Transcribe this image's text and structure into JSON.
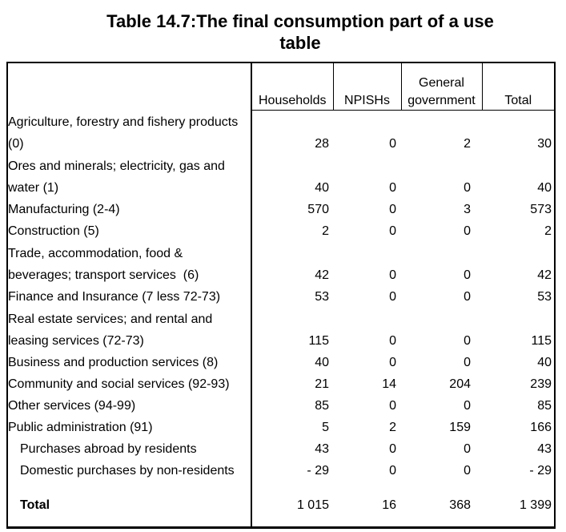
{
  "title": {
    "lines": [
      "Table 14.7:The final consumption part of a use",
      "table"
    ],
    "full_text": "Table 14.7:The final consumption part of a use table"
  },
  "colors": {
    "background": "#ffffff",
    "text": "#000000",
    "border": "#000000"
  },
  "table": {
    "columns": [
      {
        "label_lines": []
      },
      {
        "label_lines": [
          "Households"
        ]
      },
      {
        "label_lines": [
          "NPISHs"
        ]
      },
      {
        "label_lines": [
          "General",
          "government"
        ]
      },
      {
        "label_lines": [
          "Total"
        ]
      }
    ],
    "rows": [
      {
        "label_lines": [
          "Agriculture, forestry and fishery products",
          "(0)"
        ],
        "values": [
          "28",
          "0",
          "2",
          "30"
        ],
        "indent": false,
        "bold": false
      },
      {
        "label_lines": [
          "Ores and minerals; electricity, gas and",
          "water (1)"
        ],
        "values": [
          "40",
          "0",
          "0",
          "40"
        ],
        "indent": false,
        "bold": false
      },
      {
        "label_lines": [
          "Manufacturing (2-4)"
        ],
        "values": [
          "570",
          "0",
          "3",
          "573"
        ],
        "indent": false,
        "bold": false
      },
      {
        "label_lines": [
          "Construction (5)"
        ],
        "values": [
          "2",
          "0",
          "0",
          "2"
        ],
        "indent": false,
        "bold": false
      },
      {
        "label_lines": [
          "Trade, accommodation, food &",
          "beverages; transport services  (6)"
        ],
        "values": [
          "42",
          "0",
          "0",
          "42"
        ],
        "indent": false,
        "bold": false
      },
      {
        "label_lines": [
          "Finance and Insurance (7 less 72-73)"
        ],
        "values": [
          "53",
          "0",
          "0",
          "53"
        ],
        "indent": false,
        "bold": false
      },
      {
        "label_lines": [
          "Real estate services; and rental and",
          "leasing services (72-73)"
        ],
        "values": [
          "115",
          "0",
          "0",
          "115"
        ],
        "indent": false,
        "bold": false
      },
      {
        "label_lines": [
          "Business and production services (8)"
        ],
        "values": [
          "40",
          "0",
          "0",
          "40"
        ],
        "indent": false,
        "bold": false
      },
      {
        "label_lines": [
          "Community and social services (92-93)"
        ],
        "values": [
          "21",
          "14",
          "204",
          "239"
        ],
        "indent": false,
        "bold": false
      },
      {
        "label_lines": [
          "Other services (94-99)"
        ],
        "values": [
          "85",
          "0",
          "0",
          "85"
        ],
        "indent": false,
        "bold": false
      },
      {
        "label_lines": [
          "Public administration (91)"
        ],
        "values": [
          "5",
          "2",
          "159",
          "166"
        ],
        "indent": false,
        "bold": false
      },
      {
        "label_lines": [
          "Purchases abroad by residents"
        ],
        "values": [
          "43",
          "0",
          "0",
          "43"
        ],
        "indent": true,
        "bold": false
      },
      {
        "label_lines": [
          "Domestic purchases by non-residents"
        ],
        "values": [
          "- 29",
          "0",
          "0",
          "- 29"
        ],
        "indent": true,
        "bold": false
      },
      {
        "label_lines": [
          "Total"
        ],
        "values": [
          "1 015",
          "16",
          "368",
          "1 399"
        ],
        "indent": true,
        "bold": true,
        "total": true
      }
    ]
  }
}
